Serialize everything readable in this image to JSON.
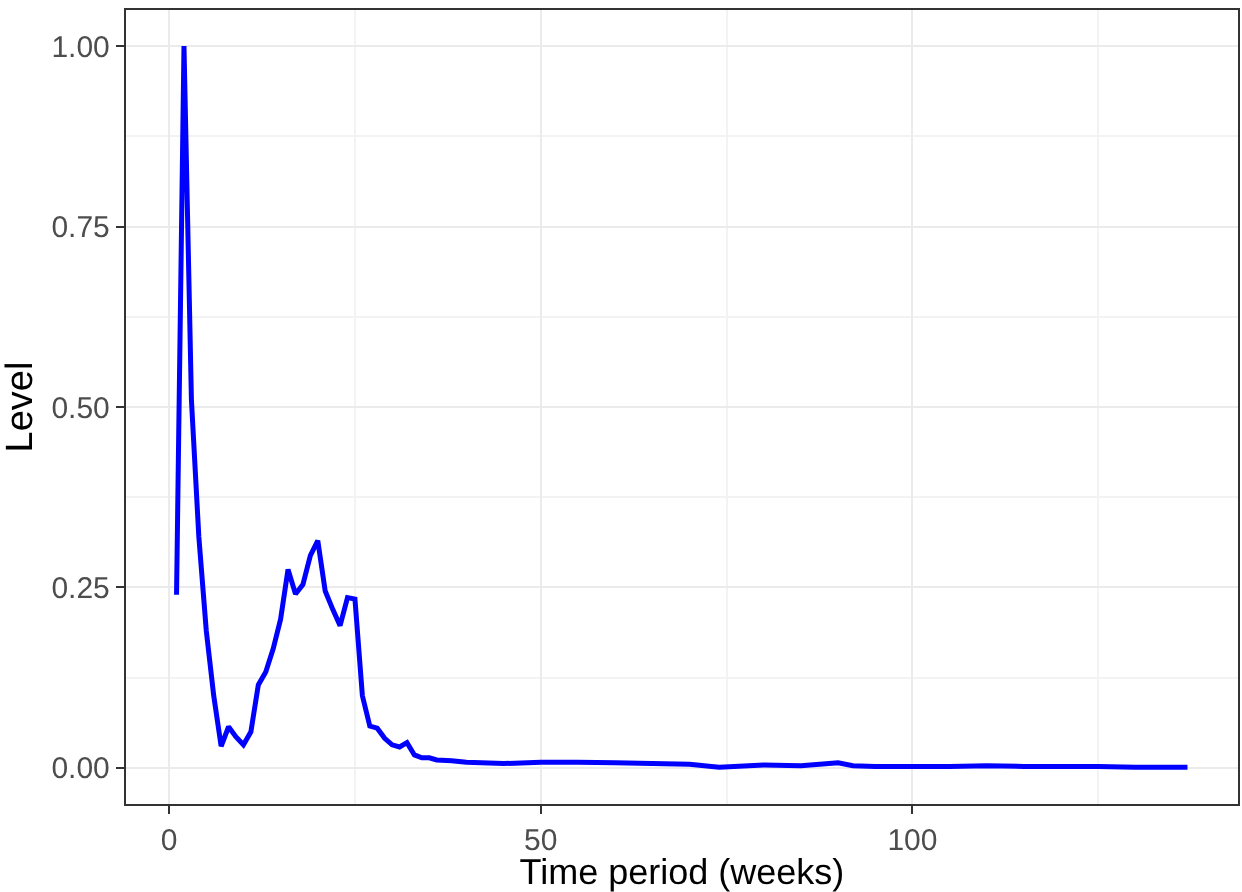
{
  "chart_data": {
    "type": "line",
    "xlabel": "Time period (weeks)",
    "ylabel": "Level",
    "x": [
      1,
      2,
      3,
      4,
      5,
      6,
      7,
      8,
      9,
      10,
      11,
      12,
      13,
      14,
      15,
      16,
      17,
      18,
      19,
      20,
      21,
      22,
      23,
      24,
      25,
      26,
      27,
      28,
      29,
      30,
      31,
      32,
      33,
      34,
      35,
      36,
      38,
      40,
      45,
      50,
      55,
      60,
      65,
      70,
      74,
      80,
      85,
      90,
      92,
      95,
      100,
      105,
      110,
      115,
      120,
      125,
      130,
      137
    ],
    "series": [
      {
        "color": "#0000ff",
        "values": [
          0.24,
          1.0,
          0.51,
          0.32,
          0.19,
          0.1,
          0.03,
          0.057,
          0.043,
          0.032,
          0.05,
          0.115,
          0.133,
          0.165,
          0.206,
          0.275,
          0.241,
          0.254,
          0.294,
          0.315,
          0.245,
          0.22,
          0.197,
          0.236,
          0.234,
          0.1,
          0.058,
          0.055,
          0.041,
          0.032,
          0.029,
          0.035,
          0.018,
          0.014,
          0.014,
          0.011,
          0.01,
          0.008,
          0.006,
          0.008,
          0.008,
          0.007,
          0.006,
          0.005,
          0.001,
          0.004,
          0.003,
          0.007,
          0.003,
          0.002,
          0.002,
          0.002,
          0.003,
          0.002,
          0.002,
          0.002,
          0.001,
          0.001
        ]
      }
    ],
    "xlim": [
      -5.8,
      143.8
    ],
    "xticks": [
      0,
      50,
      100
    ],
    "ylim": [
      -0.05,
      1.05
    ],
    "yticks": [
      {
        "value": 0,
        "label": "0.00"
      },
      {
        "value": 0.25,
        "label": "0.25"
      },
      {
        "value": 0.5,
        "label": "0.50"
      },
      {
        "value": 0.75,
        "label": "0.75"
      },
      {
        "value": 1,
        "label": "1.00"
      }
    ],
    "grid": true,
    "marker": "none",
    "line_style": "solid"
  }
}
